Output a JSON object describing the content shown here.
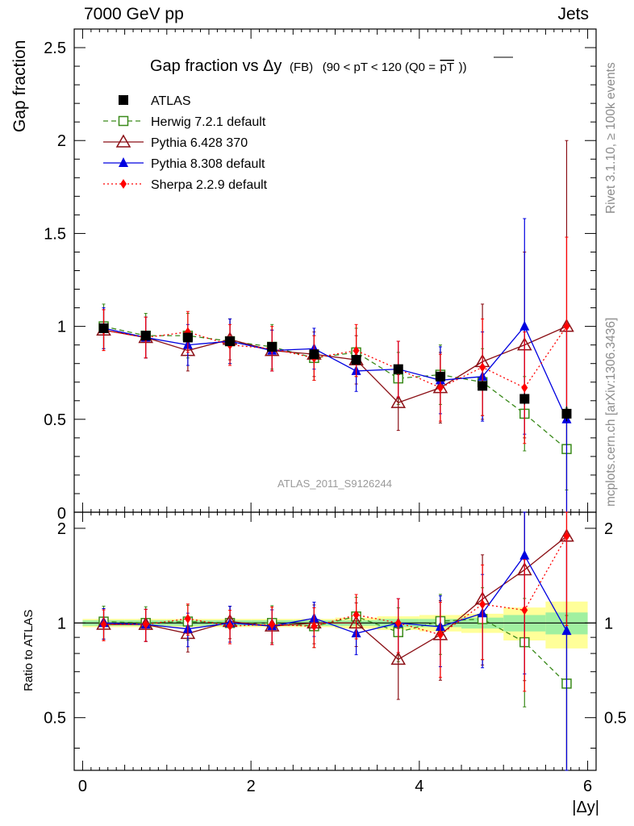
{
  "header": {
    "left": "7000 GeV pp",
    "right": "Jets"
  },
  "side_texts": {
    "rivet": "Rivet 3.1.10, ≥ 100k events",
    "mcplots": "mcplots.cern.ch [arXiv:1306.3436]"
  },
  "watermark": "ATLAS_2011_S9126244",
  "chart_data": {
    "type": "line",
    "title": "Gap fraction vs Δy",
    "title_suffix": "(FB)",
    "title_cut": "(90 < pT < 120 (Q0 = pT))",
    "title_cut_prefix": "(90 < pT < 120 (Q0 =",
    "title_cut_overline": "pT",
    "title_cut_suffix": "))",
    "xlabel": "|Δy|",
    "ylabel": "Gap fraction",
    "ratio_ylabel": "Ratio to ATLAS",
    "xlim": [
      -0.1,
      6.1
    ],
    "ylim": [
      0,
      2.6
    ],
    "ratio_ylim": [
      0.34,
      2.25
    ],
    "x_ticks": [
      "0",
      "2",
      "4",
      "6"
    ],
    "y_ticks": [
      "0.5",
      "1",
      "1.5",
      "2",
      "2.5"
    ],
    "y_zero_tick": "0",
    "ratio_y_ticks": [
      "0.5",
      "1",
      "2"
    ],
    "legend_position": "top-left",
    "x": [
      0.25,
      0.75,
      1.25,
      1.75,
      2.25,
      2.75,
      3.25,
      3.75,
      4.25,
      4.75,
      5.25,
      5.75
    ],
    "series": [
      {
        "name": "ATLAS",
        "color": "#000000",
        "marker": "square",
        "values": [
          0.99,
          0.95,
          0.94,
          0.92,
          0.89,
          0.85,
          0.82,
          0.77,
          0.73,
          0.68,
          0.61,
          0.53
        ],
        "errors": [
          0.02,
          0.02,
          0.02,
          0.02,
          0.02,
          0.02,
          0.02,
          0.02,
          0.02,
          0.02,
          0.03,
          0.04
        ]
      },
      {
        "name": "Herwig 7.2.1 default",
        "color": "#3a8a1a",
        "marker": "open-square",
        "dash": "dashed",
        "values": [
          1.0,
          0.95,
          0.95,
          0.92,
          0.89,
          0.83,
          0.86,
          0.72,
          0.74,
          0.7,
          0.53,
          0.34
        ],
        "errors": [
          0.12,
          0.12,
          0.12,
          0.12,
          0.12,
          0.12,
          0.13,
          0.14,
          0.16,
          0.18,
          0.2,
          0.22
        ]
      },
      {
        "name": "Pythia 6.428 370",
        "color": "#8b0f15",
        "marker": "open-triangle",
        "dash": "solid",
        "values": [
          0.98,
          0.94,
          0.87,
          0.93,
          0.87,
          0.85,
          0.82,
          0.59,
          0.67,
          0.81,
          0.9,
          1.0
        ],
        "errors": [
          0.11,
          0.11,
          0.11,
          0.11,
          0.11,
          0.12,
          0.13,
          0.15,
          0.19,
          0.31,
          0.5,
          1.0
        ]
      },
      {
        "name": "Pythia 8.308 default",
        "color": "#0000e0",
        "marker": "triangle",
        "dash": "solid",
        "values": [
          0.99,
          0.94,
          0.9,
          0.92,
          0.87,
          0.88,
          0.76,
          0.77,
          0.71,
          0.73,
          1.0,
          0.5
        ],
        "errors": [
          0.11,
          0.11,
          0.11,
          0.12,
          0.11,
          0.11,
          0.11,
          0.15,
          0.18,
          0.24,
          0.58,
          0.5
        ]
      },
      {
        "name": "Sherpa 2.2.9 default",
        "color": "#ff0000",
        "marker": "diamond",
        "dash": "dotted",
        "values": [
          0.98,
          0.94,
          0.97,
          0.9,
          0.88,
          0.83,
          0.87,
          0.77,
          0.67,
          0.78,
          0.67,
          1.0
        ],
        "errors": [
          0.11,
          0.11,
          0.11,
          0.11,
          0.12,
          0.12,
          0.14,
          0.15,
          0.18,
          0.26,
          0.3,
          0.48
        ]
      }
    ],
    "ratio_band": {
      "edges": [
        0,
        0.5,
        1,
        1.5,
        2,
        2.5,
        3,
        3.5,
        4,
        4.5,
        5,
        5.5,
        6
      ],
      "inner": [
        0.02,
        0.02,
        0.02,
        0.02,
        0.02,
        0.02,
        0.02,
        0.03,
        0.03,
        0.04,
        0.06,
        0.08
      ],
      "outer": [
        0.03,
        0.03,
        0.03,
        0.03,
        0.03,
        0.03,
        0.04,
        0.05,
        0.06,
        0.07,
        0.12,
        0.17
      ],
      "inner_color": "#a0f0a0",
      "outer_color": "#ffff99"
    }
  }
}
